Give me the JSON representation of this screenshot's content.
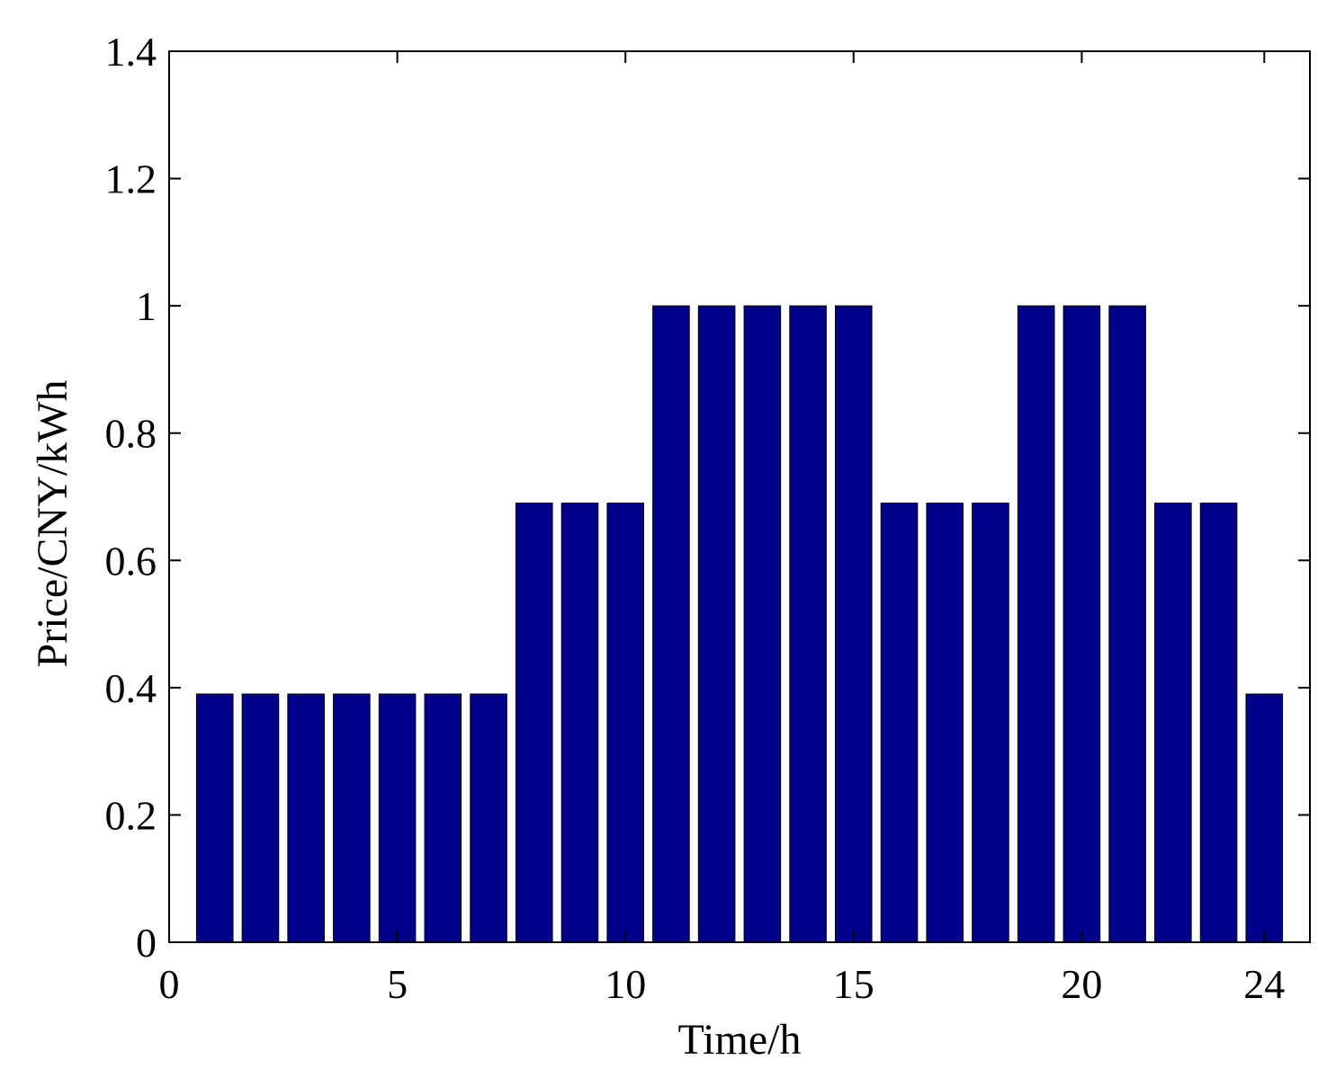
{
  "chart_data": {
    "type": "bar",
    "title": "",
    "xlabel": "Time/h",
    "ylabel": "Price/CNY/kWh",
    "x": [
      1,
      2,
      3,
      4,
      5,
      6,
      7,
      8,
      9,
      10,
      11,
      12,
      13,
      14,
      15,
      16,
      17,
      18,
      19,
      20,
      21,
      22,
      23,
      24
    ],
    "values": [
      0.39,
      0.39,
      0.39,
      0.39,
      0.39,
      0.39,
      0.39,
      0.69,
      0.69,
      0.69,
      1.0,
      1.0,
      1.0,
      1.0,
      1.0,
      0.69,
      0.69,
      0.69,
      1.0,
      1.0,
      1.0,
      0.69,
      0.69,
      0.39
    ],
    "xlim": [
      0,
      25
    ],
    "ylim": [
      0,
      1.4
    ],
    "xticks": [
      0,
      5,
      10,
      15,
      20,
      24
    ],
    "xtick_labels": [
      "0",
      "5",
      "10",
      "15",
      "20",
      "24"
    ],
    "yticks": [
      0,
      0.2,
      0.4,
      0.6,
      0.8,
      1,
      1.2,
      1.4
    ],
    "ytick_labels": [
      "0",
      "0.2",
      "0.4",
      "0.6",
      "0.8",
      "1",
      "1.2",
      "1.4"
    ],
    "bar_color": "#00008B",
    "grid": false,
    "legend": "none"
  }
}
